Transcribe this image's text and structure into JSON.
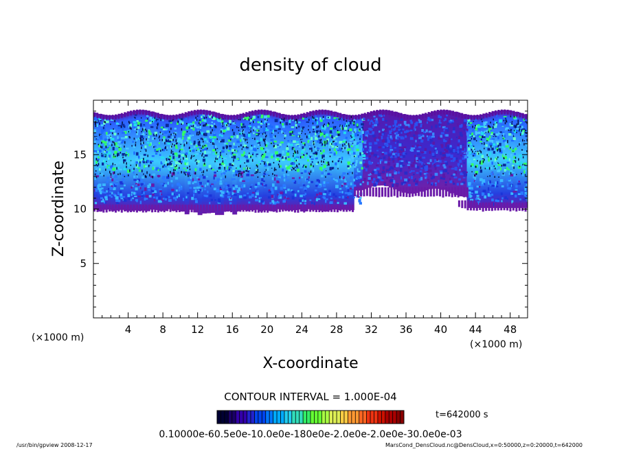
{
  "chart_data": {
    "type": "heatmap",
    "title": "density of cloud",
    "xlabel": "X-coordinate",
    "ylabel": "Z-coordinate",
    "x_unit_left": "(×1000 m)",
    "x_unit_right": "(×1000 m)",
    "xlim": [
      0,
      50
    ],
    "ylim": [
      0,
      20
    ],
    "x_ticks": [
      4,
      8,
      12,
      16,
      20,
      24,
      28,
      32,
      36,
      40,
      44,
      48
    ],
    "y_ticks": [
      5,
      10,
      15
    ],
    "contour_interval": "CONTOUR INTERVAL = 1.000E-04",
    "time_label": "t=642000 s",
    "colorbar_labels": "0.10000e-60.5e0e-10.0e0e-180e0e-2.0e0e-2.0e0e-30.0e0e-03",
    "colorbar_colors": [
      "#000033",
      "#1a0066",
      "#3300aa",
      "#2222cc",
      "#0044ee",
      "#0077ff",
      "#00aaff",
      "#22ccee",
      "#33ddbb",
      "#33ee66",
      "#66ff33",
      "#aaff44",
      "#ddee55",
      "#ffcc44",
      "#ff9933",
      "#ff6622",
      "#ee3311",
      "#cc1100",
      "#aa0000",
      "#880000"
    ],
    "cloud_layers": [
      {
        "x0": 0,
        "x1": 30,
        "zmin": 10,
        "zmax": 19,
        "density": "high"
      },
      {
        "x0": 30,
        "x1": 43,
        "zmin": 11.5,
        "zmax": 18.6,
        "density": "low"
      },
      {
        "x0": 43,
        "x1": 50,
        "zmin": 10,
        "zmax": 18.8,
        "density": "high"
      }
    ],
    "colors": {
      "high": "#3fd6ff",
      "mid": "#1b55ee",
      "low": "#6a1aa8",
      "peak": "#33ff66"
    }
  },
  "footer": {
    "left": "/usr/bin/gpview   2008-12-17",
    "right": "MarsCond_DensCloud.nc@DensCloud,x=0:50000,z=0:20000,t=642000"
  }
}
